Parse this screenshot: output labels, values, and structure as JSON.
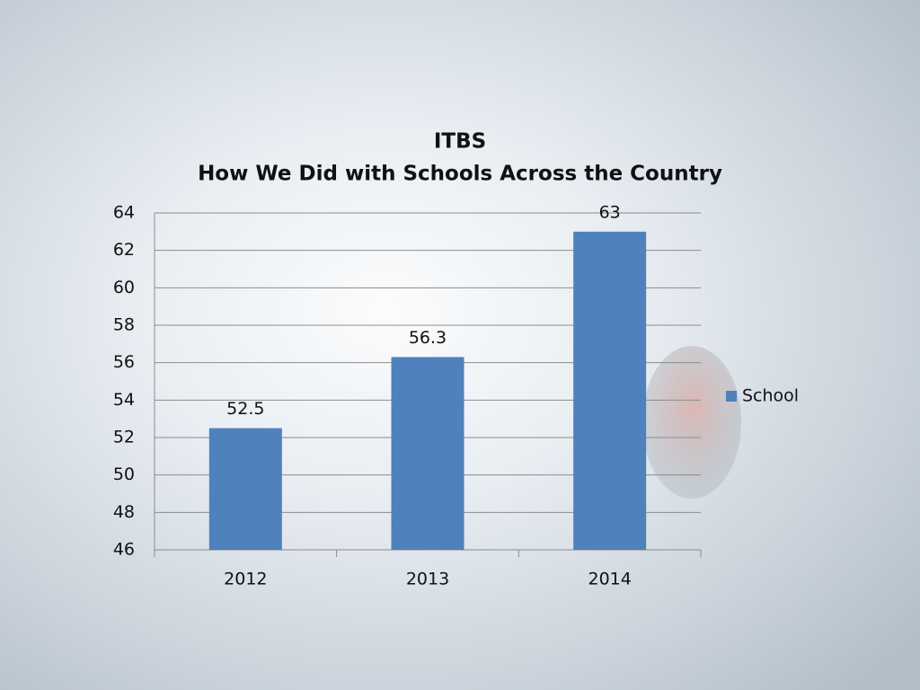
{
  "chart_data": {
    "type": "bar",
    "title": "ITBS",
    "subtitle": "How We Did with Schools Across the Country",
    "categories": [
      "2012",
      "2013",
      "2014"
    ],
    "series": [
      {
        "name": "School",
        "color": "#4f81bd",
        "values": [
          52.5,
          56.3,
          63
        ]
      }
    ],
    "ylim": [
      46,
      64
    ],
    "yticks": [
      46,
      48,
      50,
      52,
      54,
      56,
      58,
      60,
      62,
      64
    ],
    "grid": true,
    "legend": "right",
    "data_labels": true
  }
}
